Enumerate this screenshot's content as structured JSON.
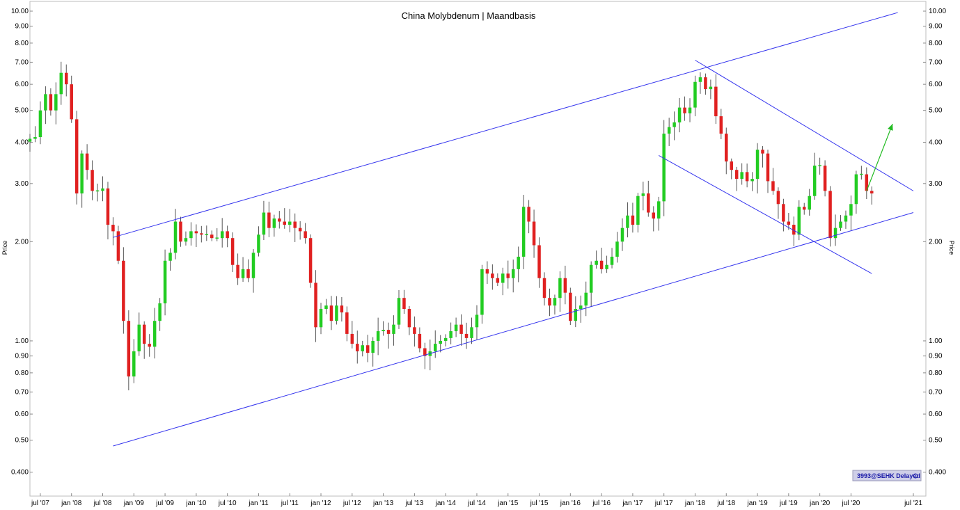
{
  "chart_data": {
    "type": "candlestick",
    "title": "China Molybdenum | Maandbasis",
    "ylabel": "Price",
    "yscale": "log",
    "ylim": [
      0.34,
      10.0
    ],
    "y_ticks": [
      "10.00",
      "9.00",
      "8.00",
      "7.00",
      "6.00",
      "5.00",
      "4.00",
      "3.00",
      "2.00",
      "1.00",
      "0.90",
      "0.80",
      "0.70",
      "0.60",
      "0.50",
      "0.400"
    ],
    "x_ticks": [
      "jul '07",
      "jan '08",
      "jul '08",
      "jan '09",
      "jul '09",
      "jan '10",
      "jul '10",
      "jan '11",
      "jul '11",
      "jan '12",
      "jul '12",
      "jan '13",
      "jul '13",
      "jan '14",
      "jul '14",
      "jan '15",
      "jul '15",
      "jan '16",
      "jul '16",
      "jan '17",
      "jul '17",
      "jan '18",
      "jul '18",
      "jan '19",
      "jul '19",
      "jan '20",
      "jul '20",
      "jul '21"
    ],
    "x_range": [
      "2007-05",
      "2021-07"
    ],
    "grid": false,
    "colors": {
      "up": "#22cc22",
      "down": "#e02020",
      "wick": "#555555",
      "trendline": "#3333ee",
      "arrow": "#22bb22"
    },
    "series": {
      "start": "2007-05",
      "closes": [
        4.1,
        4.15,
        5.0,
        5.6,
        5.0,
        5.6,
        6.5,
        6.0,
        4.7,
        2.8,
        3.7,
        3.3,
        2.85,
        2.85,
        2.9,
        2.25,
        2.15,
        1.75,
        1.15,
        0.78,
        0.93,
        1.12,
        0.98,
        0.96,
        1.15,
        1.3,
        1.75,
        1.85,
        2.3,
        2.0,
        2.05,
        2.15,
        2.12,
        2.1,
        2.1,
        2.05,
        2.05,
        2.15,
        2.05,
        1.7,
        1.55,
        1.65,
        1.55,
        1.85,
        2.1,
        2.45,
        2.2,
        2.35,
        2.3,
        2.25,
        2.3,
        2.2,
        2.15,
        2.05,
        1.5,
        1.1,
        1.25,
        1.28,
        1.15,
        1.28,
        1.22,
        1.05,
        0.98,
        0.93,
        0.97,
        0.92,
        1.0,
        1.07,
        1.08,
        1.05,
        1.12,
        1.35,
        1.25,
        1.1,
        1.05,
        0.95,
        0.9,
        0.93,
        0.98,
        1.0,
        1.02,
        1.07,
        1.12,
        1.05,
        1.02,
        1.1,
        1.2,
        1.65,
        1.6,
        1.55,
        1.5,
        1.6,
        1.55,
        1.65,
        1.8,
        2.55,
        2.3,
        1.95,
        1.55,
        1.35,
        1.28,
        1.35,
        1.55,
        1.4,
        1.15,
        1.25,
        1.28,
        1.4,
        1.7,
        1.75,
        1.65,
        1.7,
        1.8,
        2.0,
        2.2,
        2.4,
        2.25,
        2.75,
        2.8,
        2.45,
        2.35,
        2.65,
        4.25,
        4.45,
        4.6,
        5.1,
        4.9,
        5.1,
        6.1,
        6.3,
        5.8,
        5.9,
        4.8,
        4.25,
        3.5,
        3.3,
        3.1,
        3.25,
        3.05,
        3.1,
        3.8,
        3.7,
        3.05,
        2.85,
        2.6,
        2.3,
        2.25,
        2.1,
        2.55,
        2.5,
        2.75,
        3.4,
        3.4,
        2.85,
        2.05,
        2.2,
        2.3,
        2.4,
        2.6,
        3.2,
        3.2,
        2.85,
        2.8
      ]
    },
    "trendlines": [
      {
        "from": [
          "2008-09",
          2.06
        ],
        "to": [
          "2021-04",
          9.9
        ]
      },
      {
        "from": [
          "2008-09",
          0.48
        ],
        "to": [
          "2021-07",
          2.45
        ]
      },
      {
        "from": [
          "2018-01",
          7.1
        ],
        "to": [
          "2021-07",
          2.85
        ]
      },
      {
        "from": [
          "2017-06",
          3.65
        ],
        "to": [
          "2020-11",
          1.6
        ]
      }
    ],
    "arrow": {
      "from": [
        "2020-10",
        2.85
      ],
      "to": [
        "2021-03",
        4.55
      ]
    },
    "source_badge": "3993@SEHK Delayed"
  }
}
